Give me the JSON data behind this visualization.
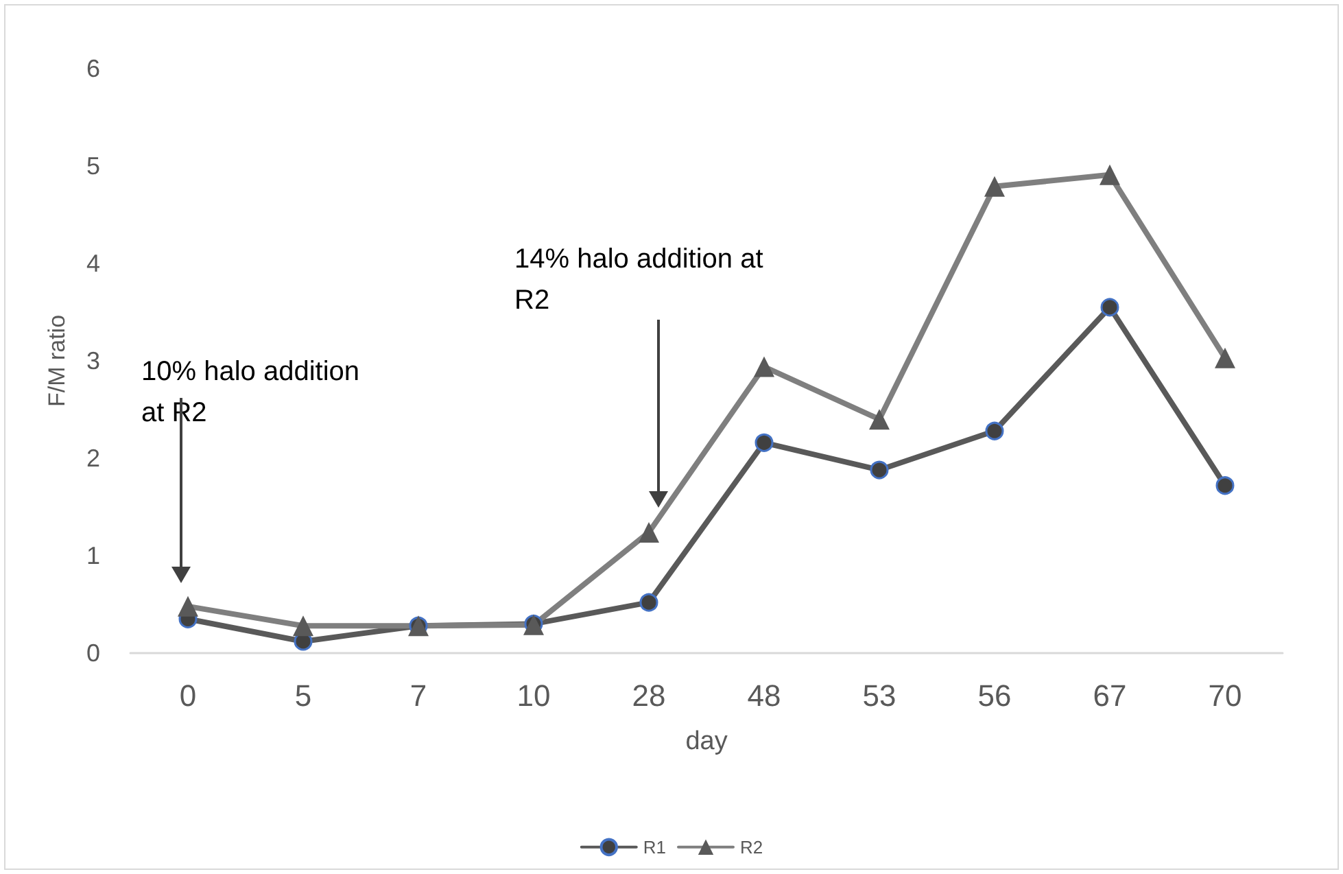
{
  "chart_data": {
    "type": "line",
    "xlabel": "day",
    "ylabel": "F/M ratio",
    "categories": [
      "0",
      "5",
      "7",
      "10",
      "28",
      "48",
      "53",
      "56",
      "67",
      "70"
    ],
    "series": [
      {
        "name": "R1",
        "color": "#595959",
        "marker": "circle",
        "values": [
          0.35,
          0.12,
          0.28,
          0.3,
          0.52,
          2.16,
          1.88,
          2.28,
          3.55,
          1.72
        ]
      },
      {
        "name": "R2",
        "color": "#7f7f7f",
        "marker": "triangle",
        "values": [
          0.48,
          0.28,
          0.28,
          0.29,
          1.24,
          2.94,
          2.4,
          4.79,
          4.91,
          3.03
        ]
      }
    ],
    "ylim": [
      0,
      6
    ],
    "yticks": [
      0,
      1,
      2,
      3,
      4,
      5,
      6
    ],
    "grid": false,
    "legend": "bottom",
    "annotations": [
      "10% halo addition\nat R2",
      "14% halo addition at\nR2"
    ]
  }
}
